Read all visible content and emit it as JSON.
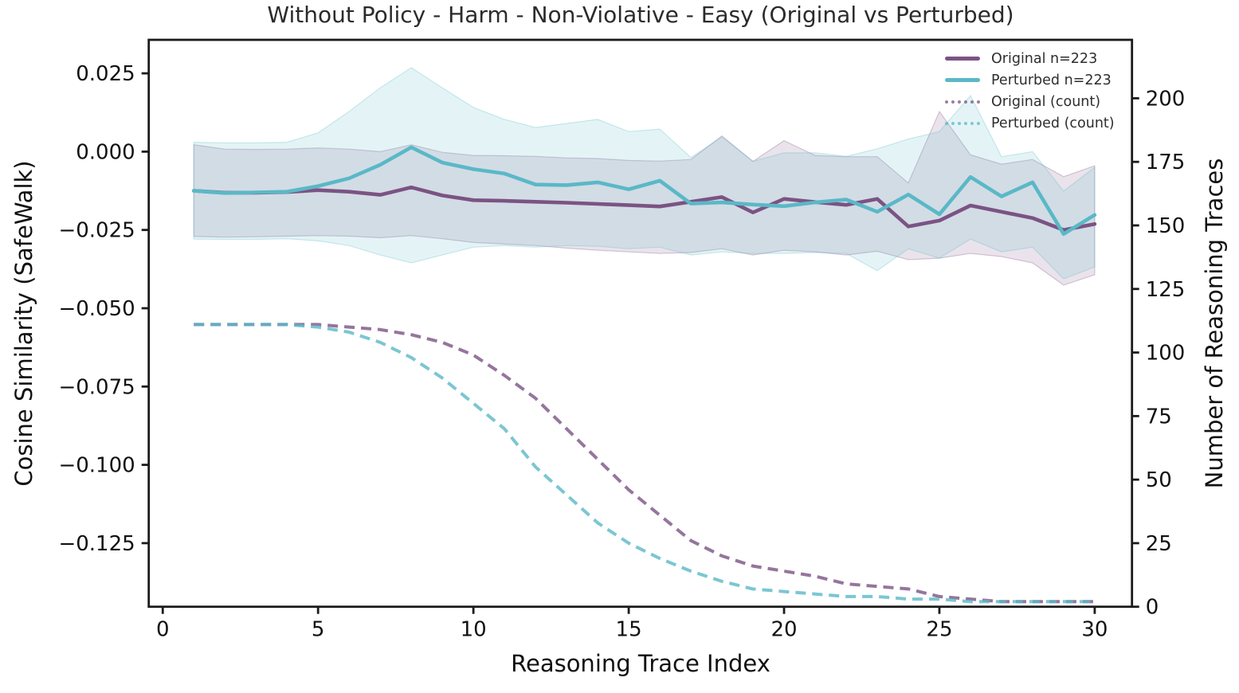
{
  "title": "Without Policy - Harm - Non-Violative - Easy (Original vs Perturbed)",
  "axes": {
    "x_label": "Reasoning Trace Index",
    "y_left_label": "Cosine Similarity (SafeWalk)",
    "y_right_label": "Number of Reasoning Traces"
  },
  "colors": {
    "original": "#7b5383",
    "perturbed": "#5ab8c7",
    "spine": "#1b1b1b",
    "tick_text": "#111111",
    "title_text": "#2b2b2b"
  },
  "chart_data": {
    "type": "line",
    "title": "Without Policy - Harm - Non-Violative - Easy (Original vs Perturbed)",
    "xlabel": "Reasoning Trace Index",
    "ylabel_left": "Cosine Similarity (SafeWalk)",
    "ylabel_right": "Number of Reasoning Traces",
    "grid": false,
    "legend_position": "upper right, frameless",
    "xlim": [
      -0.45,
      31.2
    ],
    "ylim_left": [
      -0.1453,
      0.0357
    ],
    "ylim_right": [
      0,
      223
    ],
    "x_ticks": {
      "values": [
        0,
        5,
        10,
        15,
        20,
        25,
        30
      ],
      "labels": [
        "0",
        "5",
        "10",
        "15",
        "20",
        "25",
        "30"
      ]
    },
    "y_left_ticks": {
      "values": [
        0.025,
        0.0,
        -0.025,
        -0.05,
        -0.075,
        -0.1,
        -0.125
      ],
      "labels": [
        "0.025",
        "0.000",
        "−0.025",
        "−0.050",
        "−0.075",
        "−0.100",
        "−0.125"
      ]
    },
    "y_right_ticks": {
      "values": [
        0,
        25,
        50,
        75,
        100,
        125,
        150,
        175,
        200
      ],
      "labels": [
        "0",
        "25",
        "50",
        "75",
        "100",
        "125",
        "150",
        "175",
        "200"
      ]
    },
    "x": [
      1,
      2,
      3,
      4,
      5,
      6,
      7,
      8,
      9,
      10,
      11,
      12,
      13,
      14,
      15,
      16,
      17,
      18,
      19,
      20,
      21,
      22,
      23,
      24,
      25,
      26,
      27,
      28,
      29,
      30
    ],
    "series": [
      {
        "name": "Original n=223",
        "axis": "left",
        "style": "solid",
        "color": "#7b5383",
        "values": [
          -0.0125,
          -0.0131,
          -0.0131,
          -0.0129,
          -0.0123,
          -0.0128,
          -0.0138,
          -0.0114,
          -0.014,
          -0.0155,
          -0.0157,
          -0.016,
          -0.0163,
          -0.0167,
          -0.0171,
          -0.0175,
          -0.016,
          -0.0145,
          -0.0194,
          -0.0151,
          -0.0161,
          -0.017,
          -0.0151,
          -0.0239,
          -0.022,
          -0.0172,
          -0.0192,
          -0.0212,
          -0.025,
          -0.0231
        ],
        "band_upper": [
          0.0022,
          0.0008,
          0.0007,
          0.0008,
          0.0012,
          0.0008,
          0.0,
          0.0022,
          -0.0002,
          -0.0012,
          -0.0013,
          -0.0015,
          -0.002,
          -0.0022,
          -0.0028,
          -0.003,
          -0.0025,
          0.005,
          -0.0031,
          0.0035,
          -0.0012,
          -0.0016,
          -0.0016,
          -0.01,
          0.0128,
          -0.001,
          -0.004,
          -0.0025,
          -0.008,
          -0.0045
        ],
        "band_lower": [
          -0.0271,
          -0.0273,
          -0.0272,
          -0.027,
          -0.0268,
          -0.027,
          -0.0275,
          -0.0268,
          -0.0278,
          -0.029,
          -0.0295,
          -0.03,
          -0.0308,
          -0.0315,
          -0.032,
          -0.0325,
          -0.0322,
          -0.031,
          -0.033,
          -0.0315,
          -0.032,
          -0.033,
          -0.0318,
          -0.0345,
          -0.034,
          -0.0325,
          -0.0335,
          -0.0355,
          -0.0426,
          -0.0393
        ]
      },
      {
        "name": "Perturbed n=223",
        "axis": "left",
        "style": "solid",
        "color": "#5ab8c7",
        "values": [
          -0.0125,
          -0.0132,
          -0.013,
          -0.0128,
          -0.011,
          -0.0085,
          -0.0042,
          0.0014,
          -0.0035,
          -0.0056,
          -0.007,
          -0.0105,
          -0.0107,
          -0.0098,
          -0.012,
          -0.0093,
          -0.0166,
          -0.0162,
          -0.0169,
          -0.0174,
          -0.0162,
          -0.0153,
          -0.0192,
          -0.0137,
          -0.02,
          -0.0081,
          -0.0143,
          -0.0098,
          -0.0263,
          -0.0202
        ],
        "band_upper": [
          0.003,
          0.0028,
          0.0028,
          0.003,
          0.006,
          0.0128,
          0.0204,
          0.0268,
          0.0204,
          0.0141,
          0.0103,
          0.0077,
          0.009,
          0.0103,
          0.0064,
          0.0072,
          -0.0019,
          0.0047,
          -0.0031,
          -0.0004,
          -0.0004,
          -0.0015,
          0.0009,
          0.004,
          0.0064,
          0.0179,
          -0.0016,
          0.0,
          -0.0126,
          -0.005
        ],
        "band_lower": [
          -0.0279,
          -0.028,
          -0.028,
          -0.0278,
          -0.0285,
          -0.03,
          -0.033,
          -0.0355,
          -0.033,
          -0.0305,
          -0.03,
          -0.0305,
          -0.03,
          -0.0302,
          -0.031,
          -0.0305,
          -0.033,
          -0.032,
          -0.0325,
          -0.0325,
          -0.0322,
          -0.0325,
          -0.038,
          -0.031,
          -0.034,
          -0.0279,
          -0.032,
          -0.0305,
          -0.0406,
          -0.0368
        ]
      },
      {
        "name": "Original (count)",
        "axis": "right",
        "style": "dashed",
        "color": "#7b5383",
        "values": [
          111,
          111,
          111,
          111,
          111,
          110,
          109,
          107,
          104,
          99,
          91,
          82,
          70,
          58,
          46,
          36,
          26,
          20,
          16,
          14,
          12,
          9,
          8,
          7,
          4,
          3,
          2,
          2,
          2,
          2
        ]
      },
      {
        "name": "Perturbed (count)",
        "axis": "right",
        "style": "dashed",
        "color": "#5ab8c7",
        "values": [
          111,
          111,
          111,
          111,
          110,
          108,
          104,
          98,
          90,
          80,
          70,
          55,
          44,
          33,
          25,
          19,
          14,
          10,
          7,
          6,
          5,
          4,
          4,
          3,
          3,
          2,
          2,
          2,
          2,
          2
        ]
      }
    ]
  },
  "legend": {
    "items": [
      {
        "label": "Original n=223"
      },
      {
        "label": "Perturbed n=223"
      },
      {
        "label": "Original (count)"
      },
      {
        "label": "Perturbed (count)"
      }
    ]
  }
}
